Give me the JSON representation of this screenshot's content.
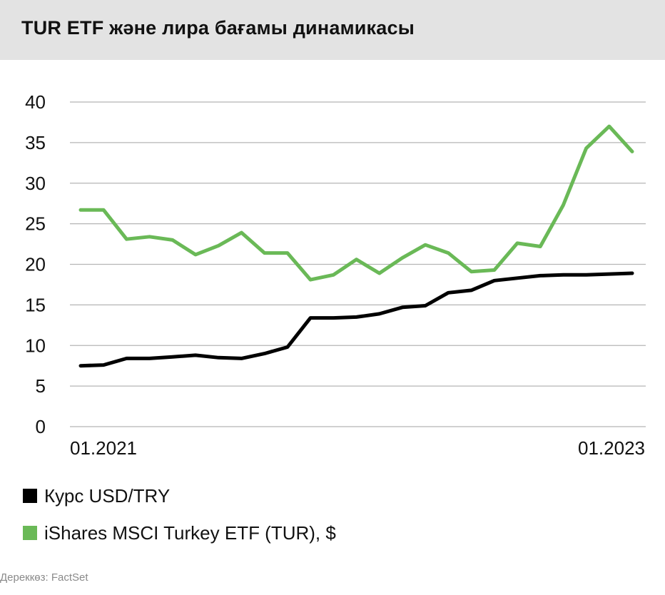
{
  "header": {
    "title": "TUR ETF  және лира бағамы динамикасы"
  },
  "chart_data": {
    "type": "line",
    "title": "TUR ETF  және лира бағамы динамикасы",
    "x": [
      0,
      1,
      2,
      3,
      4,
      5,
      6,
      7,
      8,
      9,
      10,
      11,
      12,
      13,
      14,
      15,
      16,
      17,
      18,
      19,
      20,
      21,
      22,
      23,
      24
    ],
    "x_tick_labels": [
      {
        "index": 0,
        "label": "01.2021"
      },
      {
        "index": 23,
        "label": "01.2023"
      }
    ],
    "ylim": [
      0,
      40
    ],
    "yticks": [
      0,
      5,
      10,
      15,
      20,
      25,
      30,
      35,
      40
    ],
    "grid": true,
    "legend_position": "bottom-left",
    "series": [
      {
        "name": "Курс USD/TRY",
        "color": "#000000",
        "values": [
          7.5,
          7.6,
          8.4,
          8.4,
          8.6,
          8.8,
          8.5,
          8.4,
          9.0,
          9.8,
          13.4,
          13.4,
          13.5,
          13.9,
          14.7,
          14.9,
          16.5,
          16.8,
          18.0,
          18.3,
          18.6,
          18.7,
          18.7,
          18.8,
          18.9
        ]
      },
      {
        "name": "iShares MSCI Turkey ETF (TUR), $",
        "color": "#6ab957",
        "values": [
          26.7,
          26.7,
          23.1,
          23.4,
          23.0,
          21.2,
          22.3,
          23.9,
          21.4,
          21.4,
          18.1,
          18.7,
          20.6,
          18.9,
          20.8,
          22.4,
          21.4,
          19.1,
          19.3,
          22.6,
          22.2,
          27.3,
          34.3,
          37.0,
          33.9
        ]
      }
    ]
  },
  "source": "Дереккөз: FactSet"
}
